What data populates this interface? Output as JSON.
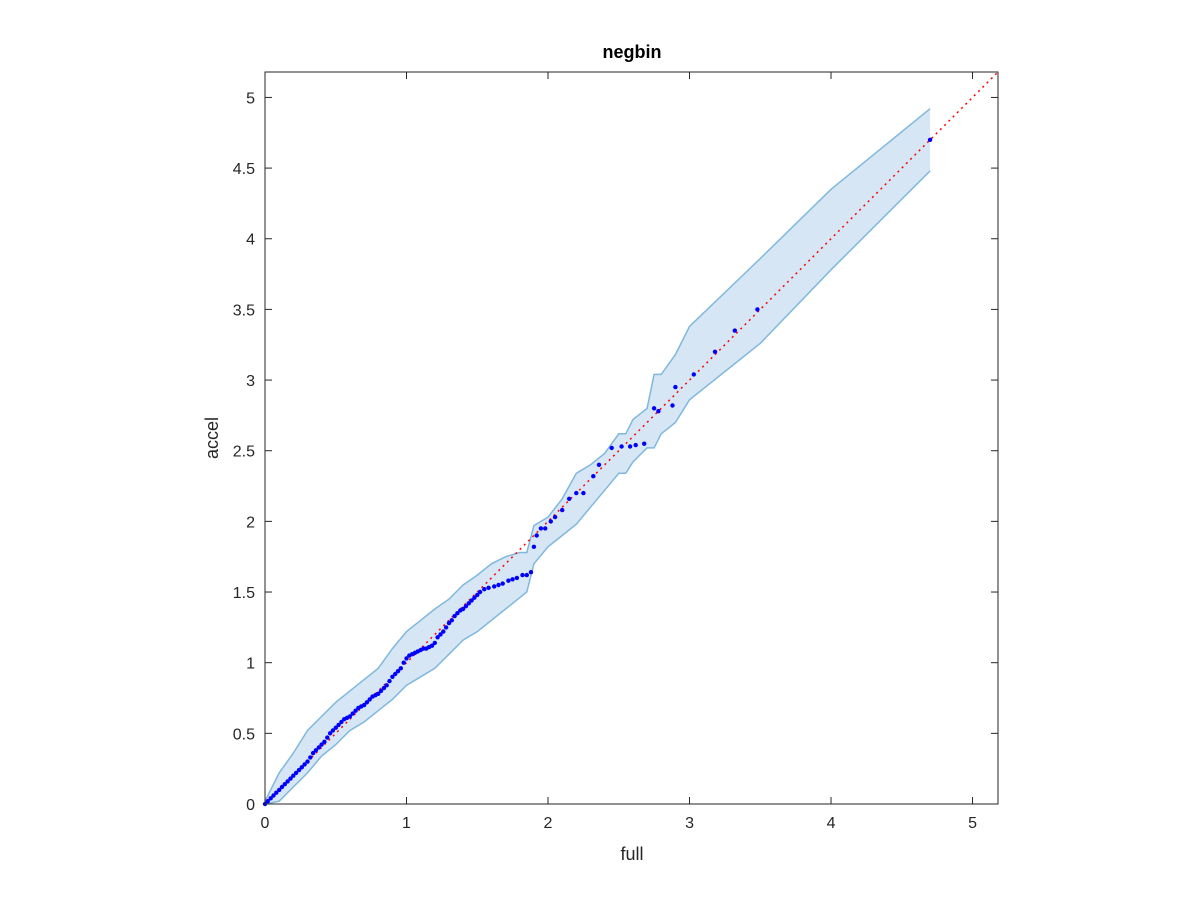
{
  "chart_data": {
    "type": "scatter",
    "title": "negbin",
    "xlabel": "full",
    "ylabel": "accel",
    "xlim": [
      0,
      5.18
    ],
    "ylim": [
      0,
      5.18
    ],
    "xticks": [
      0,
      1,
      2,
      3,
      4,
      5
    ],
    "xtick_labels": [
      "0",
      "1",
      "2",
      "3",
      "4",
      "5"
    ],
    "yticks": [
      0,
      0.5,
      1,
      1.5,
      2,
      2.5,
      3,
      3.5,
      4,
      4.5,
      5
    ],
    "ytick_labels": [
      "0",
      "0.5",
      "1",
      "1.5",
      "2",
      "2.5",
      "3",
      "3.5",
      "4",
      "4.5",
      "5"
    ],
    "grid": false,
    "reference_line": {
      "from": [
        0,
        0
      ],
      "to": [
        5.18,
        5.18
      ],
      "color": "#ff0000",
      "style": "dotted"
    },
    "band": {
      "color_fill": "#d6e6f4",
      "color_edge": "#7fb8dc",
      "x": [
        0.0,
        0.1,
        0.2,
        0.3,
        0.4,
        0.5,
        0.6,
        0.7,
        0.8,
        0.9,
        1.0,
        1.1,
        1.2,
        1.3,
        1.4,
        1.5,
        1.6,
        1.7,
        1.8,
        1.85,
        1.9,
        2.0,
        2.1,
        2.2,
        2.3,
        2.4,
        2.5,
        2.55,
        2.6,
        2.7,
        2.75,
        2.8,
        2.9,
        3.0,
        3.5,
        4.0,
        4.7
      ],
      "upper": [
        0.02,
        0.22,
        0.36,
        0.52,
        0.62,
        0.72,
        0.8,
        0.88,
        0.96,
        1.1,
        1.22,
        1.3,
        1.38,
        1.45,
        1.55,
        1.62,
        1.7,
        1.75,
        1.78,
        1.78,
        1.97,
        2.03,
        2.16,
        2.34,
        2.4,
        2.48,
        2.62,
        2.62,
        2.72,
        2.8,
        3.04,
        3.04,
        3.18,
        3.38,
        3.86,
        4.35,
        4.92
      ],
      "lower": [
        0.0,
        0.02,
        0.12,
        0.22,
        0.34,
        0.42,
        0.52,
        0.58,
        0.66,
        0.74,
        0.84,
        0.9,
        0.96,
        1.06,
        1.16,
        1.22,
        1.3,
        1.38,
        1.46,
        1.5,
        1.7,
        1.82,
        1.9,
        1.98,
        2.1,
        2.22,
        2.34,
        2.34,
        2.42,
        2.52,
        2.52,
        2.62,
        2.7,
        2.86,
        3.26,
        3.78,
        4.48
      ]
    },
    "series": [
      {
        "color": "#0000ff",
        "x": [
          0.0,
          0.02,
          0.04,
          0.06,
          0.08,
          0.1,
          0.12,
          0.14,
          0.16,
          0.18,
          0.2,
          0.22,
          0.24,
          0.26,
          0.28,
          0.3,
          0.32,
          0.34,
          0.36,
          0.38,
          0.4,
          0.42,
          0.44,
          0.46,
          0.48,
          0.5,
          0.52,
          0.54,
          0.56,
          0.58,
          0.6,
          0.62,
          0.64,
          0.66,
          0.68,
          0.7,
          0.72,
          0.74,
          0.76,
          0.78,
          0.8,
          0.82,
          0.84,
          0.86,
          0.88,
          0.9,
          0.92,
          0.94,
          0.96,
          0.98,
          1.0,
          1.02,
          1.04,
          1.06,
          1.08,
          1.1,
          1.12,
          1.14,
          1.16,
          1.18,
          1.2,
          1.22,
          1.24,
          1.26,
          1.28,
          1.3,
          1.32,
          1.34,
          1.36,
          1.38,
          1.4,
          1.42,
          1.44,
          1.46,
          1.48,
          1.5,
          1.52,
          1.55,
          1.58,
          1.62,
          1.65,
          1.68,
          1.72,
          1.75,
          1.78,
          1.82,
          1.85,
          1.88,
          1.9,
          1.92,
          1.95,
          1.98,
          2.02,
          2.05,
          2.1,
          2.15,
          2.2,
          2.25,
          2.32,
          2.36,
          2.45,
          2.52,
          2.58,
          2.62,
          2.68,
          2.75,
          2.78,
          2.88,
          2.9,
          3.03,
          3.18,
          3.32,
          3.48,
          4.7
        ],
        "y": [
          0.0,
          0.02,
          0.04,
          0.06,
          0.08,
          0.1,
          0.12,
          0.14,
          0.16,
          0.18,
          0.2,
          0.22,
          0.24,
          0.26,
          0.28,
          0.3,
          0.33,
          0.36,
          0.38,
          0.4,
          0.42,
          0.44,
          0.47,
          0.5,
          0.52,
          0.54,
          0.56,
          0.58,
          0.6,
          0.61,
          0.62,
          0.64,
          0.66,
          0.68,
          0.69,
          0.7,
          0.72,
          0.74,
          0.76,
          0.77,
          0.78,
          0.8,
          0.82,
          0.84,
          0.87,
          0.9,
          0.92,
          0.94,
          0.96,
          1.0,
          1.03,
          1.05,
          1.06,
          1.07,
          1.08,
          1.09,
          1.1,
          1.1,
          1.11,
          1.12,
          1.14,
          1.18,
          1.2,
          1.22,
          1.25,
          1.28,
          1.3,
          1.33,
          1.35,
          1.37,
          1.38,
          1.4,
          1.42,
          1.44,
          1.46,
          1.48,
          1.5,
          1.52,
          1.53,
          1.54,
          1.55,
          1.56,
          1.58,
          1.59,
          1.6,
          1.62,
          1.62,
          1.64,
          1.82,
          1.9,
          1.95,
          1.95,
          2.0,
          2.03,
          2.08,
          2.16,
          2.2,
          2.2,
          2.32,
          2.4,
          2.52,
          2.53,
          2.53,
          2.54,
          2.55,
          2.8,
          2.78,
          2.82,
          2.95,
          3.04,
          3.2,
          3.35,
          3.5,
          4.7
        ]
      }
    ]
  }
}
